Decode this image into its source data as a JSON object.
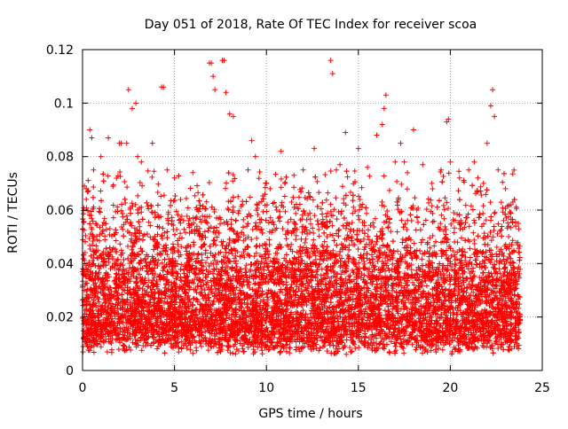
{
  "colors": {
    "series": "#ff0000",
    "grid": "#a0a0a0",
    "axis": "#000000",
    "background": "#ffffff"
  },
  "chart_data": {
    "type": "scatter",
    "title": "Day 051 of 2018, Rate Of TEC Index for receiver scoa",
    "xlabel": "GPS time / hours",
    "ylabel": "ROTI / TECUs",
    "xlim": [
      0,
      25
    ],
    "ylim": [
      0,
      0.12
    ],
    "x_ticks": [
      0,
      5,
      10,
      15,
      20,
      25
    ],
    "x_tick_labels": [
      "0",
      "5",
      "10",
      "15",
      "20",
      "25"
    ],
    "y_ticks": [
      0,
      0.02,
      0.04,
      0.06,
      0.08,
      0.1,
      0.12
    ],
    "y_tick_labels": [
      "0",
      "0.02",
      "0.04",
      "0.06",
      "0.08",
      "0.1",
      "0.12"
    ],
    "grid": true,
    "legend": "none",
    "marker": "plus",
    "x_coverage": [
      0,
      23.8
    ],
    "series": [
      {
        "description_of_density": "dense cloud of points, most values between 0.005 and 0.05",
        "points": [
          [
            0.1,
            0.069
          ],
          [
            0.2,
            0.068
          ],
          [
            0.4,
            0.09
          ],
          [
            0.5,
            0.087
          ],
          [
            0.6,
            0.075
          ],
          [
            1.0,
            0.08
          ],
          [
            1.4,
            0.087
          ],
          [
            2.0,
            0.085
          ],
          [
            2.1,
            0.085
          ],
          [
            2.4,
            0.085
          ],
          [
            2.5,
            0.105
          ],
          [
            2.7,
            0.098
          ],
          [
            2.9,
            0.1
          ],
          [
            3.0,
            0.08
          ],
          [
            3.2,
            0.078
          ],
          [
            3.8,
            0.085
          ],
          [
            4.3,
            0.106
          ],
          [
            4.4,
            0.106
          ],
          [
            4.6,
            0.075
          ],
          [
            5.0,
            0.072
          ],
          [
            6.0,
            0.074
          ],
          [
            6.9,
            0.115
          ],
          [
            7.0,
            0.115
          ],
          [
            7.1,
            0.11
          ],
          [
            7.2,
            0.105
          ],
          [
            7.6,
            0.116
          ],
          [
            7.7,
            0.116
          ],
          [
            7.8,
            0.104
          ],
          [
            8.0,
            0.096
          ],
          [
            8.2,
            0.095
          ],
          [
            9.0,
            0.075
          ],
          [
            9.2,
            0.086
          ],
          [
            9.4,
            0.08
          ],
          [
            10.0,
            0.07
          ],
          [
            10.2,
            0.068
          ],
          [
            10.8,
            0.082
          ],
          [
            11.0,
            0.07
          ],
          [
            12.0,
            0.075
          ],
          [
            12.6,
            0.083
          ],
          [
            13.5,
            0.116
          ],
          [
            13.6,
            0.111
          ],
          [
            13.8,
            0.075
          ],
          [
            14.0,
            0.077
          ],
          [
            14.3,
            0.089
          ],
          [
            15.0,
            0.083
          ],
          [
            15.5,
            0.076
          ],
          [
            16.0,
            0.088
          ],
          [
            16.3,
            0.092
          ],
          [
            16.4,
            0.098
          ],
          [
            16.5,
            0.103
          ],
          [
            17.0,
            0.078
          ],
          [
            17.3,
            0.085
          ],
          [
            17.5,
            0.078
          ],
          [
            18.0,
            0.09
          ],
          [
            18.5,
            0.077
          ],
          [
            19.0,
            0.07
          ],
          [
            19.5,
            0.075
          ],
          [
            19.8,
            0.093
          ],
          [
            19.9,
            0.094
          ],
          [
            20.0,
            0.078
          ],
          [
            20.5,
            0.072
          ],
          [
            21.0,
            0.075
          ],
          [
            21.3,
            0.078
          ],
          [
            21.5,
            0.072
          ],
          [
            21.8,
            0.07
          ],
          [
            22.0,
            0.085
          ],
          [
            22.2,
            0.099
          ],
          [
            22.3,
            0.105
          ],
          [
            22.4,
            0.095
          ],
          [
            22.6,
            0.075
          ],
          [
            23.0,
            0.068
          ],
          [
            23.3,
            0.062
          ],
          [
            23.7,
            0.055
          ]
        ]
      }
    ]
  }
}
